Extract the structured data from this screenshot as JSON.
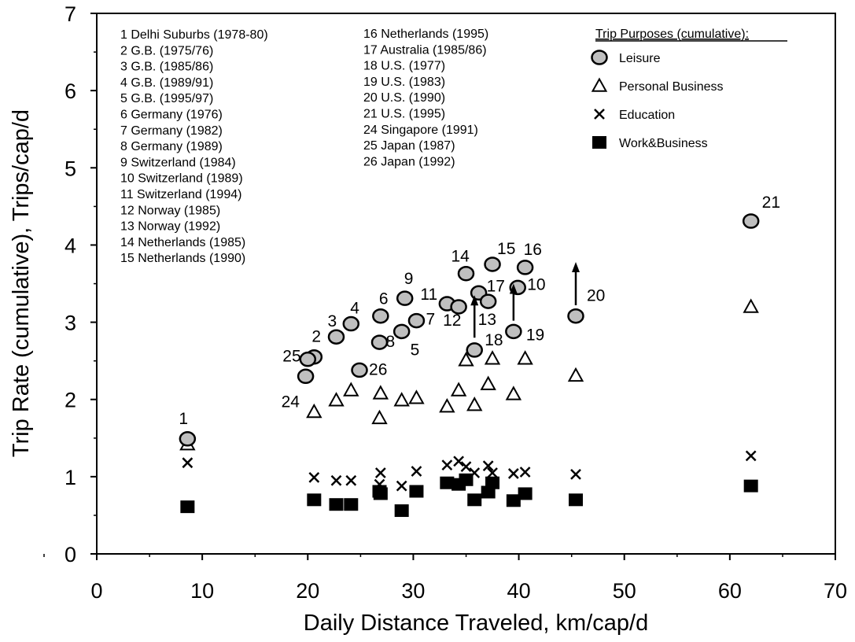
{
  "chart_data": {
    "type": "scatter",
    "title": "",
    "xlabel": "Daily Distance Traveled, km/cap/d",
    "ylabel": "Trip Rate (cumulative), Trips/cap/d",
    "xlim": [
      0,
      70
    ],
    "ylim": [
      0,
      7
    ],
    "xticks": [
      0,
      10,
      20,
      30,
      40,
      50,
      60,
      70
    ],
    "yticks": [
      0,
      1,
      2,
      3,
      4,
      5,
      6,
      7
    ],
    "grid": false,
    "legend_placement": "top-right",
    "legend_title": "Trip Purposes (cumulative):",
    "series": [
      {
        "name": "Leisure",
        "marker": "circle",
        "points": [
          [
            8.6,
            1.49
          ],
          [
            20.6,
            2.55
          ],
          [
            20.0,
            2.52
          ],
          [
            19.8,
            2.3
          ],
          [
            22.7,
            2.81
          ],
          [
            24.1,
            2.98
          ],
          [
            26.9,
            3.08
          ],
          [
            26.8,
            2.74
          ],
          [
            24.9,
            2.38
          ],
          [
            29.2,
            3.31
          ],
          [
            28.9,
            2.88
          ],
          [
            30.3,
            3.02
          ],
          [
            33.2,
            3.24
          ],
          [
            34.3,
            3.2
          ],
          [
            35.0,
            3.63
          ],
          [
            37.5,
            3.75
          ],
          [
            35.8,
            2.64
          ],
          [
            36.2,
            3.38
          ],
          [
            37.1,
            3.27
          ],
          [
            39.5,
            2.88
          ],
          [
            39.9,
            3.45
          ],
          [
            40.6,
            3.71
          ],
          [
            45.4,
            3.08
          ],
          [
            62.0,
            4.31
          ]
        ]
      },
      {
        "name": "Personal Business",
        "marker": "triangle",
        "points": [
          [
            8.6,
            1.42
          ],
          [
            20.6,
            1.84
          ],
          [
            22.7,
            1.99
          ],
          [
            24.1,
            2.12
          ],
          [
            26.9,
            2.08
          ],
          [
            26.8,
            1.76
          ],
          [
            28.9,
            1.99
          ],
          [
            30.3,
            2.02
          ],
          [
            33.2,
            1.91
          ],
          [
            34.3,
            2.12
          ],
          [
            35.0,
            2.51
          ],
          [
            35.8,
            1.93
          ],
          [
            37.1,
            2.2
          ],
          [
            37.5,
            2.53
          ],
          [
            39.5,
            2.07
          ],
          [
            40.6,
            2.53
          ],
          [
            45.4,
            2.31
          ],
          [
            62.0,
            3.2
          ]
        ]
      },
      {
        "name": "Education",
        "marker": "x",
        "points": [
          [
            8.6,
            1.18
          ],
          [
            20.6,
            0.99
          ],
          [
            22.7,
            0.95
          ],
          [
            24.1,
            0.95
          ],
          [
            26.9,
            1.05
          ],
          [
            26.8,
            0.9
          ],
          [
            28.9,
            0.88
          ],
          [
            30.3,
            1.07
          ],
          [
            33.2,
            1.15
          ],
          [
            34.3,
            1.2
          ],
          [
            35.0,
            1.13
          ],
          [
            35.8,
            1.05
          ],
          [
            37.1,
            1.14
          ],
          [
            37.5,
            1.05
          ],
          [
            39.5,
            1.04
          ],
          [
            40.6,
            1.06
          ],
          [
            45.4,
            1.03
          ],
          [
            62.0,
            1.27
          ]
        ]
      },
      {
        "name": "Work&Business",
        "marker": "square",
        "points": [
          [
            8.6,
            0.61
          ],
          [
            20.6,
            0.7
          ],
          [
            22.7,
            0.64
          ],
          [
            24.1,
            0.64
          ],
          [
            26.9,
            0.78
          ],
          [
            26.8,
            0.81
          ],
          [
            28.9,
            0.56
          ],
          [
            30.3,
            0.81
          ],
          [
            33.2,
            0.92
          ],
          [
            34.3,
            0.9
          ],
          [
            35.0,
            0.96
          ],
          [
            35.8,
            0.7
          ],
          [
            37.1,
            0.8
          ],
          [
            37.5,
            0.92
          ],
          [
            39.5,
            0.69
          ],
          [
            40.6,
            0.78
          ],
          [
            45.4,
            0.7
          ],
          [
            62.0,
            0.88
          ]
        ]
      }
    ],
    "point_labels": [
      {
        "text": "1",
        "x": 8.6,
        "y": 1.49
      },
      {
        "text": "2",
        "x": 20.6,
        "y": 2.55
      },
      {
        "text": "25",
        "x": 20.0,
        "y": 2.52
      },
      {
        "text": "24",
        "x": 19.8,
        "y": 2.3
      },
      {
        "text": "3",
        "x": 22.7,
        "y": 2.81
      },
      {
        "text": "4",
        "x": 24.1,
        "y": 2.98
      },
      {
        "text": "6",
        "x": 26.9,
        "y": 3.08
      },
      {
        "text": "8",
        "x": 26.8,
        "y": 2.74
      },
      {
        "text": "26",
        "x": 24.9,
        "y": 2.38
      },
      {
        "text": "9",
        "x": 29.2,
        "y": 3.31
      },
      {
        "text": "5",
        "x": 28.9,
        "y": 2.88
      },
      {
        "text": "7",
        "x": 30.3,
        "y": 3.02
      },
      {
        "text": "11",
        "x": 33.2,
        "y": 3.24
      },
      {
        "text": "12",
        "x": 34.3,
        "y": 3.2
      },
      {
        "text": "14",
        "x": 35.0,
        "y": 3.63
      },
      {
        "text": "15",
        "x": 37.5,
        "y": 3.75
      },
      {
        "text": "18",
        "x": 35.8,
        "y": 2.64
      },
      {
        "text": "17",
        "x": 36.2,
        "y": 3.38
      },
      {
        "text": "13",
        "x": 37.1,
        "y": 3.27
      },
      {
        "text": "19",
        "x": 39.5,
        "y": 2.88
      },
      {
        "text": "10",
        "x": 39.9,
        "y": 3.45
      },
      {
        "text": "16",
        "x": 40.6,
        "y": 3.71
      },
      {
        "text": "20",
        "x": 45.4,
        "y": 3.08
      },
      {
        "text": "21",
        "x": 62.0,
        "y": 4.31
      }
    ],
    "arrows": [
      {
        "x": 35.8,
        "y_from": 2.8,
        "y_to": 3.35
      },
      {
        "x": 39.5,
        "y_from": 3.02,
        "y_to": 3.5
      },
      {
        "x": 45.4,
        "y_from": 3.22,
        "y_to": 3.78
      }
    ],
    "key_list": {
      "column1": [
        "1 Delhi Suburbs (1978-80)",
        "2 G.B. (1975/76)",
        "3  G.B. (1985/86)",
        "4  G.B. (1989/91)",
        "5  G.B. (1995/97)",
        "6 Germany (1976)",
        "7  Germany (1982)",
        "8 Germany (1989)",
        "9  Switzerland (1984)",
        "10  Switzerland (1989)",
        "11 Switzerland (1994)",
        "12 Norway (1985)",
        "13 Norway (1992)",
        "14 Netherlands (1985)",
        "15 Netherlands (1990)"
      ],
      "column2": [
        "16 Netherlands (1995)",
        "17 Australia (1985/86)",
        "18 U.S. (1977)",
        "19 U.S. (1983)",
        "20 U.S. (1990)",
        "21 U.S. (1995)",
        "24 Singapore (1991)",
        "25 Japan (1987)",
        "26 Japan (1992)"
      ]
    }
  }
}
